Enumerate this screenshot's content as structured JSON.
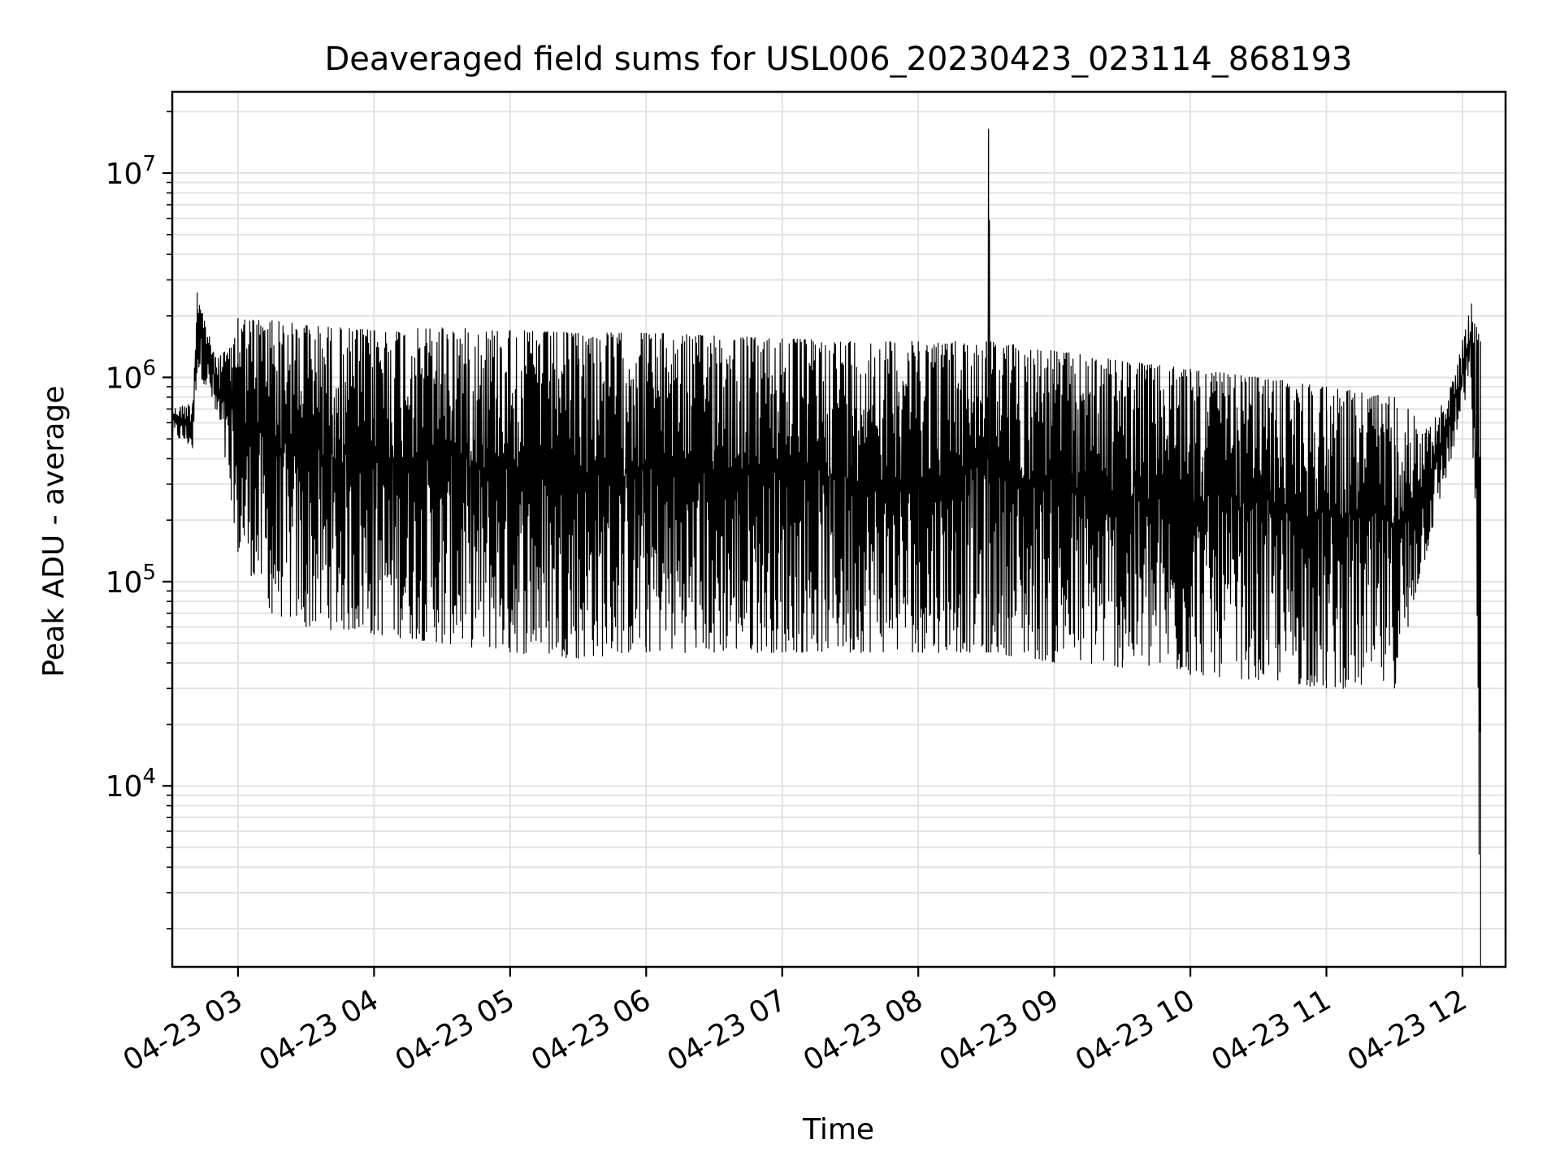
{
  "chart_data": {
    "type": "line",
    "title": "Deaveraged field sums for USL006_20230423_023114_868193",
    "xlabel": "Time",
    "ylabel": "Peak ADU - average",
    "yscale": "log",
    "grid": true,
    "x_ticks": [
      "04-23 03",
      "04-23 04",
      "04-23 05",
      "04-23 06",
      "04-23 07",
      "04-23 08",
      "04-23 09",
      "04-23 10",
      "04-23 11",
      "04-23 12"
    ],
    "y_ticks": [
      {
        "base": "10",
        "exp": "4",
        "value": 10000
      },
      {
        "base": "10",
        "exp": "5",
        "value": 100000
      },
      {
        "base": "10",
        "exp": "6",
        "value": 1000000
      },
      {
        "base": "10",
        "exp": "7",
        "value": 10000000
      }
    ],
    "xlim": [
      "04-23 02:31",
      "04-23 12:19"
    ],
    "ylim": [
      1300,
      25000000
    ],
    "series": [
      {
        "color": "#000000",
        "envelope": [
          {
            "t": "04-23 02:31",
            "high": 700000,
            "low": 520000
          },
          {
            "t": "04-23 02:40",
            "high": 750000,
            "low": 450000
          },
          {
            "t": "04-23 02:42",
            "high": 2600000,
            "low": 1100000
          },
          {
            "t": "04-23 02:50",
            "high": 1250000,
            "low": 700000
          },
          {
            "t": "04-23 02:57",
            "high": 1400000,
            "low": 250000
          },
          {
            "t": "04-23 03:00",
            "high": 1950000,
            "low": 140000
          },
          {
            "t": "04-23 03:15",
            "high": 1900000,
            "low": 70000
          },
          {
            "t": "04-23 03:30",
            "high": 1800000,
            "low": 60000
          },
          {
            "t": "04-23 04:00",
            "high": 1700000,
            "low": 55000
          },
          {
            "t": "04-23 04:30",
            "high": 1750000,
            "low": 50000
          },
          {
            "t": "04-23 05:00",
            "high": 1700000,
            "low": 45000
          },
          {
            "t": "04-23 05:30",
            "high": 1650000,
            "low": 42000
          },
          {
            "t": "04-23 06:00",
            "high": 1650000,
            "low": 45000
          },
          {
            "t": "04-23 06:30",
            "high": 1600000,
            "low": 45000
          },
          {
            "t": "04-23 07:00",
            "high": 1550000,
            "low": 45000
          },
          {
            "t": "04-23 07:30",
            "high": 1500000,
            "low": 45000
          },
          {
            "t": "04-23 08:00",
            "high": 1500000,
            "low": 45000
          },
          {
            "t": "04-23 08:30",
            "high": 1500000,
            "low": 45000
          },
          {
            "t": "04-23 08:31",
            "high": 16500000,
            "low": 45000
          },
          {
            "t": "04-23 08:32",
            "high": 1500000,
            "low": 45000
          },
          {
            "t": "04-23 09:00",
            "high": 1350000,
            "low": 40000
          },
          {
            "t": "04-23 09:30",
            "high": 1200000,
            "low": 38000
          },
          {
            "t": "04-23 10:00",
            "high": 1100000,
            "low": 35000
          },
          {
            "t": "04-23 10:30",
            "high": 1000000,
            "low": 33000
          },
          {
            "t": "04-23 11:00",
            "high": 900000,
            "low": 30000
          },
          {
            "t": "04-23 11:30",
            "high": 800000,
            "low": 30000
          },
          {
            "t": "04-23 11:36",
            "high": 700000,
            "low": 60000
          },
          {
            "t": "04-23 11:45",
            "high": 550000,
            "low": 150000
          },
          {
            "t": "04-23 11:55",
            "high": 900000,
            "low": 400000
          },
          {
            "t": "04-23 12:04",
            "high": 2300000,
            "low": 1000000
          },
          {
            "t": "04-23 12:08",
            "high": 1500000,
            "low": 1300
          }
        ]
      }
    ]
  }
}
